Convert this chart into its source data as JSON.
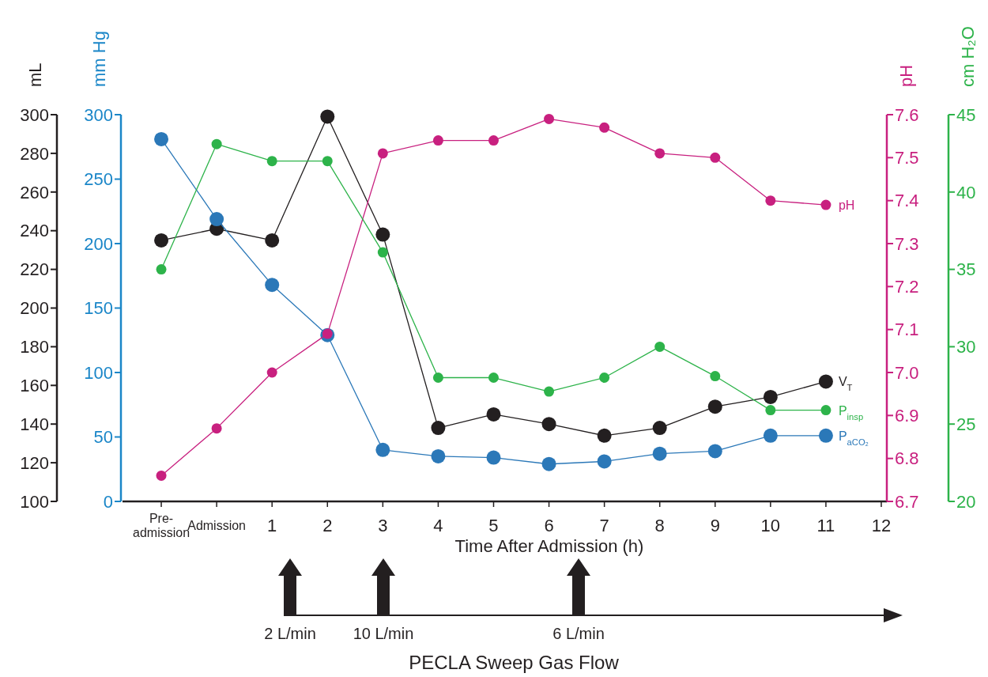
{
  "chart_data": [
    {
      "type": "line",
      "xlabel": "Time After Admission (h)",
      "ylabel": "mL",
      "y2label": "mm Hg",
      "x": [
        -1,
        0,
        1,
        2,
        3,
        4,
        5,
        6,
        7,
        8,
        9,
        10,
        11
      ],
      "xlim": [
        -1.7,
        12.1
      ],
      "xticks": [
        {
          "value": -1,
          "label": "Pre-\nadmission"
        },
        {
          "value": 0,
          "label": "Admission"
        },
        1,
        2,
        3,
        4,
        5,
        6,
        7,
        8,
        9,
        10,
        11,
        12
      ],
      "ylim": [
        100,
        300
      ],
      "yticks": [
        100,
        120,
        140,
        160,
        180,
        200,
        220,
        240,
        260,
        280,
        300
      ],
      "y2lim": [
        0,
        300
      ],
      "y2ticks": [
        0,
        50,
        100,
        150,
        200,
        250,
        300
      ],
      "marker": "circle",
      "series": [
        {
          "name": "V$_{T}$",
          "color": "#231f20",
          "values": [
            235,
            241,
            235,
            299,
            238,
            138,
            145,
            140,
            134,
            138,
            149,
            154,
            162
          ]
        },
        {
          "name": "P$_{aCO₂}$",
          "color": "#2b78b8",
          "axis": "y2",
          "values": [
            281,
            219,
            168,
            129,
            40,
            35,
            34,
            29,
            31,
            37,
            39,
            51,
            51
          ]
        }
      ],
      "annotations": [
        "2 L/min",
        "10 L/min",
        "6 L/min",
        "PECLA Sweep Gas Flow"
      ]
    },
    {
      "type": "line",
      "ylabel": "pH",
      "y2label": "cm H₂O",
      "x": [
        -1,
        0,
        1,
        2,
        3,
        4,
        5,
        6,
        7,
        8,
        9,
        10,
        11
      ],
      "xlim": [
        -1.7,
        12.1
      ],
      "tick_labels": "y",
      "ylim": [
        6.7,
        7.6
      ],
      "yticks": [
        {
          "value": 6.7,
          "label": "6.7"
        },
        {
          "value": 6.8,
          "label": "6.8"
        },
        {
          "value": 6.9,
          "label": "6.9"
        },
        {
          "value": 7,
          "label": "7.0"
        },
        {
          "value": 7.1,
          "label": "7.1"
        },
        {
          "value": 7.2,
          "label": "7.2"
        },
        {
          "value": 7.3,
          "label": "7.3"
        },
        {
          "value": 7.4,
          "label": "7.4"
        },
        {
          "value": 7.5,
          "label": "7.5"
        },
        {
          "value": 7.6,
          "label": "7.6"
        }
      ],
      "y2lim": [
        20,
        45
      ],
      "y2ticks": [
        20,
        25,
        30,
        35,
        40,
        45
      ],
      "marker": "circle",
      "series": [
        {
          "name": "pH",
          "color": "#c8207f",
          "values": [
            6.76,
            6.87,
            7.0,
            7.09,
            7.51,
            7.54,
            7.54,
            7.59,
            7.57,
            7.51,
            7.5,
            7.4,
            7.39
          ]
        },
        {
          "name": "P$_{insp}$",
          "color": "#2db34a",
          "axis": "y2",
          "values": [
            35,
            43.1,
            42,
            42,
            36.1,
            28,
            28,
            27.1,
            28,
            30,
            28.1,
            25.9,
            25.9
          ]
        }
      ]
    }
  ]
}
